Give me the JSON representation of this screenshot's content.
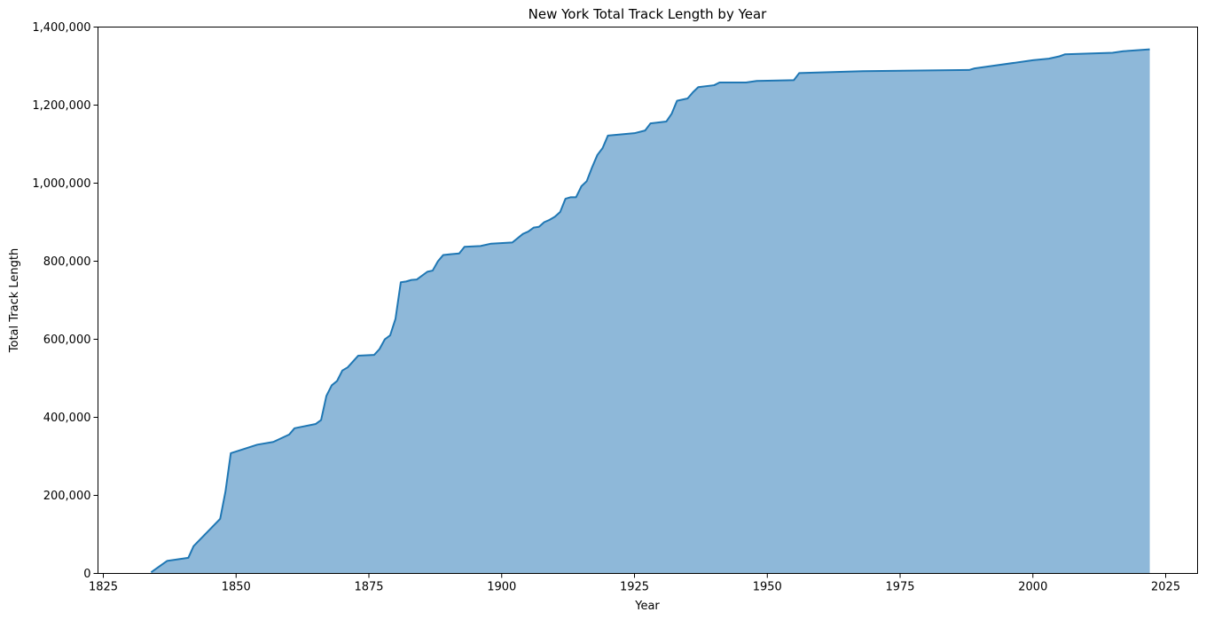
{
  "chart_data": {
    "type": "area",
    "title": "New York Total Track Length by Year",
    "xlabel": "Year",
    "ylabel": "Total Track Length",
    "xlim": [
      1824,
      2031
    ],
    "ylim": [
      0,
      1400000
    ],
    "x_ticks": [
      1825,
      1850,
      1875,
      1900,
      1925,
      1950,
      1975,
      2000,
      2025
    ],
    "x_tick_labels": [
      "1825",
      "1850",
      "1875",
      "1900",
      "1925",
      "1950",
      "1975",
      "2000",
      "2025"
    ],
    "y_ticks": [
      0,
      200000,
      400000,
      600000,
      800000,
      1000000,
      1200000,
      1400000
    ],
    "y_tick_labels": [
      "0",
      "200,000",
      "400,000",
      "600,000",
      "800,000",
      "1,000,000",
      "1,200,000",
      "1,400,000"
    ],
    "grid": false,
    "line_color": "#1f77b4",
    "fill_color": "#8eb8d9",
    "x": [
      1834,
      1837,
      1841,
      1842,
      1847,
      1848,
      1849,
      1854,
      1857,
      1860,
      1861,
      1865,
      1866,
      1867,
      1868,
      1869,
      1870,
      1871,
      1873,
      1876,
      1877,
      1878,
      1879,
      1880,
      1881,
      1882,
      1883,
      1884,
      1886,
      1887,
      1888,
      1889,
      1892,
      1893,
      1896,
      1898,
      1902,
      1904,
      1905,
      1906,
      1907,
      1908,
      1909,
      1910,
      1911,
      1912,
      1913,
      1914,
      1915,
      1916,
      1917,
      1918,
      1919,
      1920,
      1925,
      1927,
      1928,
      1931,
      1932,
      1933,
      1935,
      1936,
      1937,
      1940,
      1941,
      1946,
      1948,
      1955,
      1956,
      1968,
      1988,
      1989,
      2000,
      2003,
      2005,
      2006,
      2015,
      2017,
      2022
    ],
    "values": [
      3000,
      32000,
      40000,
      70000,
      140000,
      210000,
      308000,
      330000,
      337000,
      356000,
      372000,
      383000,
      393000,
      455000,
      482000,
      493000,
      520000,
      528000,
      558000,
      560000,
      575000,
      600000,
      610000,
      652000,
      746000,
      748000,
      752000,
      753000,
      773000,
      776000,
      800000,
      816000,
      820000,
      837000,
      839000,
      845000,
      848000,
      870000,
      876000,
      886000,
      888000,
      900000,
      906000,
      914000,
      926000,
      960000,
      964000,
      964000,
      992000,
      1005000,
      1040000,
      1072000,
      1090000,
      1122000,
      1128000,
      1135000,
      1153000,
      1158000,
      1178000,
      1211000,
      1217000,
      1233000,
      1246000,
      1251000,
      1258000,
      1258000,
      1262000,
      1264000,
      1282000,
      1287000,
      1290000,
      1294000,
      1315000,
      1319000,
      1325000,
      1330000,
      1334000,
      1338000,
      1343000
    ]
  }
}
